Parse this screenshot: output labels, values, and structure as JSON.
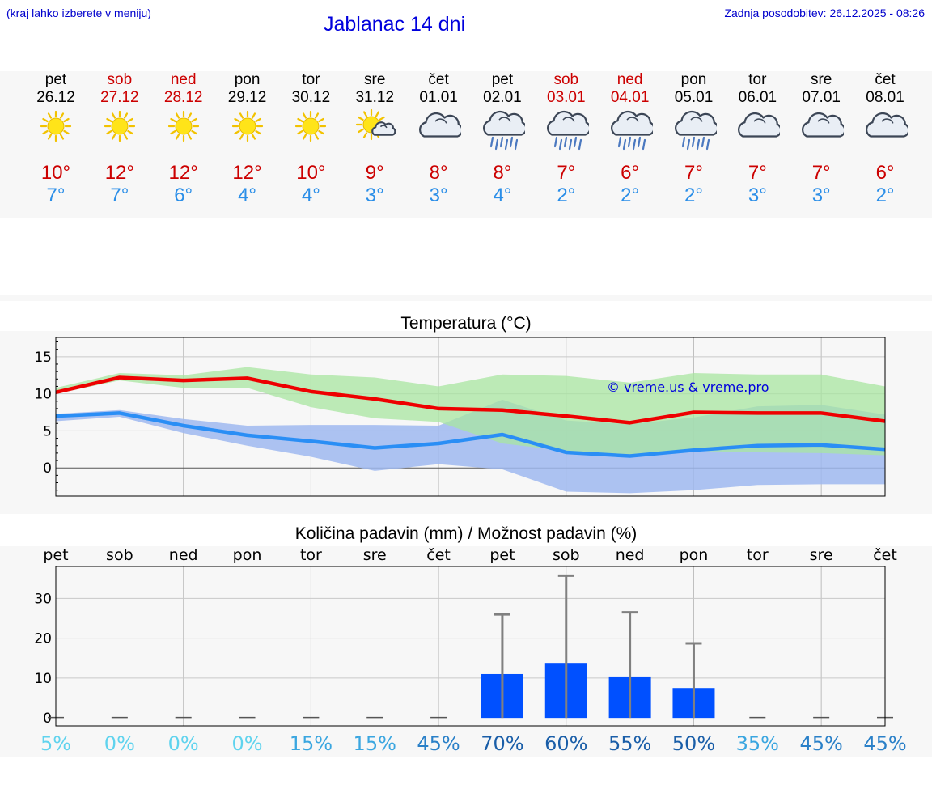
{
  "header": {
    "hint": "(kraj lahko izberete v meniju)",
    "title": "Jablanac 14 dni",
    "updated_label": "Zadnja posodobitev:",
    "updated_value": "26.12.2025 - 08:26"
  },
  "days": [
    {
      "name": "pet",
      "date": "26.12",
      "weekend": false,
      "icon": "sun-icon",
      "tmax": "10°",
      "tmin": "7°"
    },
    {
      "name": "sob",
      "date": "27.12",
      "weekend": true,
      "icon": "sun-icon",
      "tmax": "12°",
      "tmin": "7°"
    },
    {
      "name": "ned",
      "date": "28.12",
      "weekend": true,
      "icon": "sun-icon",
      "tmax": "12°",
      "tmin": "6°"
    },
    {
      "name": "pon",
      "date": "29.12",
      "weekend": false,
      "icon": "sun-icon",
      "tmax": "12°",
      "tmin": "4°"
    },
    {
      "name": "tor",
      "date": "30.12",
      "weekend": false,
      "icon": "sun-icon",
      "tmax": "10°",
      "tmin": "4°"
    },
    {
      "name": "sre",
      "date": "31.12",
      "weekend": false,
      "icon": "sun-cloud-icon",
      "tmax": "9°",
      "tmin": "3°"
    },
    {
      "name": "čet",
      "date": "01.01",
      "weekend": false,
      "icon": "cloud-icon",
      "tmax": "8°",
      "tmin": "3°"
    },
    {
      "name": "pet",
      "date": "02.01",
      "weekend": false,
      "icon": "rain-cloud-icon",
      "tmax": "8°",
      "tmin": "4°"
    },
    {
      "name": "sob",
      "date": "03.01",
      "weekend": true,
      "icon": "rain-cloud-icon",
      "tmax": "7°",
      "tmin": "2°"
    },
    {
      "name": "ned",
      "date": "04.01",
      "weekend": true,
      "icon": "rain-cloud-icon",
      "tmax": "6°",
      "tmin": "2°"
    },
    {
      "name": "pon",
      "date": "05.01",
      "weekend": false,
      "icon": "rain-cloud-icon",
      "tmax": "7°",
      "tmin": "2°"
    },
    {
      "name": "tor",
      "date": "06.01",
      "weekend": false,
      "icon": "cloud-icon",
      "tmax": "7°",
      "tmin": "3°"
    },
    {
      "name": "sre",
      "date": "07.01",
      "weekend": false,
      "icon": "cloud-icon",
      "tmax": "7°",
      "tmin": "3°"
    },
    {
      "name": "čet",
      "date": "08.01",
      "weekend": false,
      "icon": "cloud-icon",
      "tmax": "6°",
      "tmin": "2°"
    }
  ],
  "colors": {
    "tmax": "#ee0000",
    "tmin": "#2a8ef5",
    "tmax_band": "#a8e6a0",
    "tmin_band": "#9fb8f0",
    "overlap": "#78be9c",
    "bar": "#0050ff",
    "errbar": "#808080",
    "weekend_text": "#cc0000",
    "title_blue": "#0000dd"
  },
  "chart_data": [
    {
      "type": "line",
      "title": "Temperatura (°C)",
      "watermark": "© vreme.us & vreme.pro",
      "x": [
        0,
        1,
        2,
        3,
        4,
        5,
        6,
        7,
        8,
        9,
        10,
        11,
        12,
        13
      ],
      "ylim": [
        -3.8,
        17.6
      ],
      "yticks": [
        0,
        5,
        10,
        15
      ],
      "grid": true,
      "series": [
        {
          "name": "max",
          "values": [
            10.2,
            12.2,
            11.8,
            12.1,
            10.3,
            9.3,
            8.0,
            7.8,
            7.0,
            6.1,
            7.5,
            7.4,
            7.4,
            6.3
          ]
        },
        {
          "name": "min",
          "values": [
            7.0,
            7.4,
            5.7,
            4.4,
            3.6,
            2.7,
            3.3,
            4.5,
            2.1,
            1.6,
            2.4,
            3.0,
            3.1,
            2.5
          ]
        }
      ],
      "bands": [
        {
          "name": "max-range",
          "low": [
            10.0,
            11.8,
            10.8,
            10.8,
            8.2,
            6.7,
            6.2,
            3.3,
            2.3,
            1.6,
            2.3,
            2.1,
            2.0,
            1.7
          ],
          "high": [
            10.8,
            12.8,
            12.5,
            13.6,
            12.6,
            12.2,
            11.0,
            12.6,
            12.4,
            11.5,
            12.8,
            12.6,
            12.6,
            11.0
          ]
        },
        {
          "name": "min-range",
          "low": [
            6.3,
            6.9,
            4.7,
            3.0,
            1.5,
            -0.4,
            0.5,
            -0.2,
            -3.2,
            -3.4,
            -3.0,
            -2.3,
            -2.2,
            -2.2
          ],
          "high": [
            7.3,
            7.8,
            6.6,
            5.7,
            5.8,
            5.8,
            5.7,
            9.2,
            6.4,
            5.9,
            6.8,
            8.3,
            8.5,
            7.2
          ]
        }
      ]
    },
    {
      "type": "bar",
      "title": "Količina padavin (mm) / Možnost padavin (%)",
      "categories": [
        "pet",
        "sob",
        "ned",
        "pon",
        "tor",
        "sre",
        "čet",
        "pet",
        "sob",
        "ned",
        "pon",
        "tor",
        "sre",
        "čet"
      ],
      "values": [
        0,
        0,
        0,
        0,
        0,
        0,
        0,
        11.0,
        13.8,
        10.4,
        7.5,
        0,
        0,
        0
      ],
      "error_high": [
        0,
        0,
        0,
        0,
        0,
        0,
        0,
        26.0,
        35.7,
        26.5,
        18.7,
        0,
        0,
        0
      ],
      "probability": [
        "5%",
        "0%",
        "0%",
        "0%",
        "15%",
        "15%",
        "45%",
        "70%",
        "60%",
        "55%",
        "50%",
        "35%",
        "45%",
        "45%"
      ],
      "probability_colors": [
        "#5fd3ee",
        "#5fd3ee",
        "#5fd3ee",
        "#5fd3ee",
        "#3aa6e0",
        "#3aa6e0",
        "#2a80c8",
        "#1a5ea8",
        "#1a5ea8",
        "#1a5ea8",
        "#1a5ea8",
        "#3aa6e0",
        "#2a80c8",
        "#2a80c8"
      ],
      "ylim": [
        -2,
        38
      ],
      "yticks": [
        0,
        10,
        20,
        30
      ],
      "grid": true
    }
  ]
}
